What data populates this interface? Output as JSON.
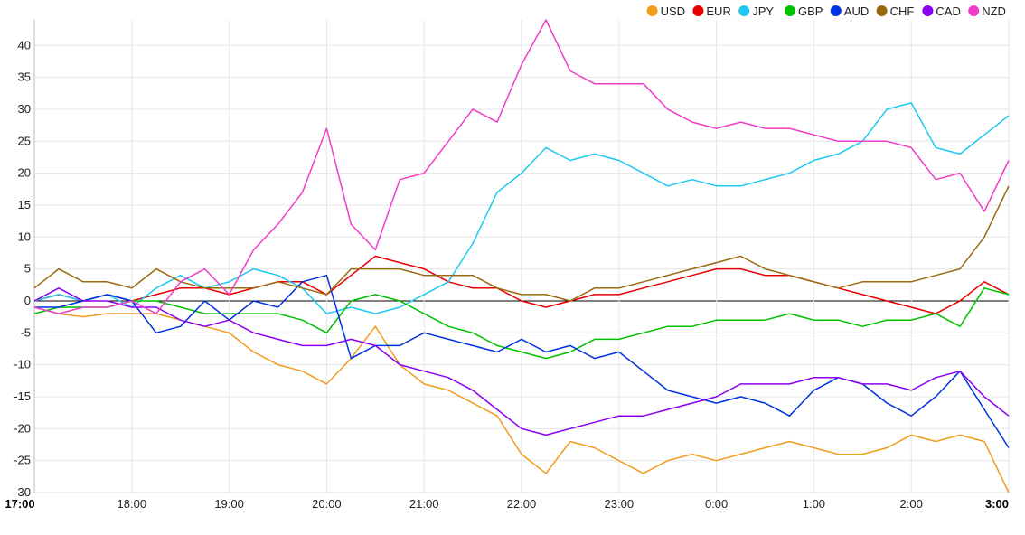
{
  "chart_data": {
    "type": "line",
    "ylim": [
      -30,
      44
    ],
    "yticks": [
      -30,
      -25,
      -20,
      -15,
      -10,
      -5,
      0,
      5,
      10,
      15,
      20,
      25,
      30,
      35,
      40
    ],
    "x_range": [
      17,
      27
    ],
    "x_ticks": [
      {
        "x": 17,
        "label": "17:00",
        "bold": true
      },
      {
        "x": 18,
        "label": "18:00",
        "bold": false
      },
      {
        "x": 19,
        "label": "19:00",
        "bold": false
      },
      {
        "x": 20,
        "label": "20:00",
        "bold": false
      },
      {
        "x": 21,
        "label": "21:00",
        "bold": false
      },
      {
        "x": 22,
        "label": "22:00",
        "bold": false
      },
      {
        "x": 23,
        "label": "23:00",
        "bold": false
      },
      {
        "x": 24,
        "label": "0:00",
        "bold": false
      },
      {
        "x": 25,
        "label": "1:00",
        "bold": false
      },
      {
        "x": 26,
        "label": "2:00",
        "bold": false
      },
      {
        "x": 27,
        "label": "3:00",
        "bold": true
      }
    ],
    "grid": true,
    "legend_position": "top-right",
    "series": [
      {
        "name": "USD",
        "color": "#f29c1f",
        "x": [
          17.0,
          17.25,
          17.5,
          17.75,
          18.0,
          18.25,
          18.5,
          18.75,
          19.0,
          19.25,
          19.5,
          19.75,
          20.0,
          20.25,
          20.5,
          20.75,
          21.0,
          21.25,
          21.5,
          21.75,
          22.0,
          22.25,
          22.5,
          22.75,
          23.0,
          23.25,
          23.5,
          23.75,
          24.0,
          24.25,
          24.5,
          24.75,
          25.0,
          25.25,
          25.5,
          25.75,
          26.0,
          26.25,
          26.5,
          26.75,
          27.0
        ],
        "y": [
          -1,
          -2,
          -2.5,
          -2,
          -2,
          -2,
          -3,
          -4,
          -5,
          -8,
          -10,
          -11,
          -13,
          -9,
          -4,
          -10,
          -13,
          -14,
          -16,
          -18,
          -24,
          -27,
          -22,
          -23,
          -25,
          -27,
          -25,
          -24,
          -25,
          -24,
          -23,
          -22,
          -23,
          -24,
          -24,
          -23,
          -21,
          -22,
          -21,
          -22,
          -30
        ]
      },
      {
        "name": "EUR",
        "color": "#e80000",
        "x": [
          17.0,
          17.25,
          17.5,
          17.75,
          18.0,
          18.25,
          18.5,
          18.75,
          19.0,
          19.25,
          19.5,
          19.75,
          20.0,
          20.25,
          20.5,
          20.75,
          21.0,
          21.25,
          21.5,
          21.75,
          22.0,
          22.25,
          22.5,
          22.75,
          23.0,
          23.25,
          23.5,
          23.75,
          24.0,
          24.25,
          24.5,
          24.75,
          25.0,
          25.25,
          25.5,
          25.75,
          26.0,
          26.25,
          26.5,
          26.75,
          27.0
        ],
        "y": [
          0,
          1,
          0,
          1,
          0,
          1,
          2,
          2,
          1,
          2,
          3,
          3,
          1,
          4,
          7,
          6,
          5,
          3,
          2,
          2,
          0,
          -1,
          0,
          1,
          1,
          2,
          3,
          4,
          5,
          5,
          4,
          4,
          3,
          2,
          1,
          0,
          -1,
          -2,
          0,
          3,
          1
        ]
      },
      {
        "name": "JPY",
        "color": "#1ec8f0",
        "x": [
          17.0,
          17.25,
          17.5,
          17.75,
          18.0,
          18.25,
          18.5,
          18.75,
          19.0,
          19.25,
          19.5,
          19.75,
          20.0,
          20.25,
          20.5,
          20.75,
          21.0,
          21.25,
          21.5,
          21.75,
          22.0,
          22.25,
          22.5,
          22.75,
          23.0,
          23.25,
          23.5,
          23.75,
          24.0,
          24.25,
          24.5,
          24.75,
          25.0,
          25.25,
          25.5,
          25.75,
          26.0,
          26.25,
          26.5,
          26.75,
          27.0
        ],
        "y": [
          0,
          1,
          0,
          1,
          -1,
          2,
          4,
          2,
          3,
          5,
          4,
          2,
          -2,
          -1,
          -2,
          -1,
          1,
          3,
          9,
          17,
          20,
          24,
          22,
          23,
          22,
          20,
          18,
          19,
          18,
          18,
          19,
          20,
          22,
          23,
          25,
          30,
          31,
          24,
          23,
          26,
          29
        ]
      },
      {
        "name": "GBP",
        "color": "#00c000",
        "x": [
          17.0,
          17.25,
          17.5,
          17.75,
          18.0,
          18.25,
          18.5,
          18.75,
          19.0,
          19.25,
          19.5,
          19.75,
          20.0,
          20.25,
          20.5,
          20.75,
          21.0,
          21.25,
          21.5,
          21.75,
          22.0,
          22.25,
          22.5,
          22.75,
          23.0,
          23.25,
          23.5,
          23.75,
          24.0,
          24.25,
          24.5,
          24.75,
          25.0,
          25.25,
          25.5,
          25.75,
          26.0,
          26.25,
          26.5,
          26.75,
          27.0
        ],
        "y": [
          -2,
          -1,
          -1,
          -1,
          0,
          0,
          -1,
          -2,
          -2,
          -2,
          -2,
          -3,
          -5,
          0,
          1,
          0,
          -2,
          -4,
          -5,
          -7,
          -8,
          -9,
          -8,
          -6,
          -6,
          -5,
          -4,
          -4,
          -3,
          -3,
          -3,
          -2,
          -3,
          -3,
          -4,
          -3,
          -3,
          -2,
          -4,
          2,
          1
        ]
      },
      {
        "name": "AUD",
        "color": "#0033e0",
        "x": [
          17.0,
          17.25,
          17.5,
          17.75,
          18.0,
          18.25,
          18.5,
          18.75,
          19.0,
          19.25,
          19.5,
          19.75,
          20.0,
          20.25,
          20.5,
          20.75,
          21.0,
          21.25,
          21.5,
          21.75,
          22.0,
          22.25,
          22.5,
          22.75,
          23.0,
          23.25,
          23.5,
          23.75,
          24.0,
          24.25,
          24.5,
          24.75,
          25.0,
          25.25,
          25.5,
          25.75,
          26.0,
          26.25,
          26.5,
          26.75,
          27.0
        ],
        "y": [
          -1,
          -1,
          0,
          1,
          0,
          -5,
          -4,
          0,
          -3,
          0,
          -1,
          3,
          4,
          -9,
          -7,
          -7,
          -5,
          -6,
          -7,
          -8,
          -6,
          -8,
          -7,
          -9,
          -8,
          -11,
          -14,
          -15,
          -16,
          -15,
          -16,
          -18,
          -14,
          -12,
          -13,
          -16,
          -18,
          -15,
          -11,
          -17,
          -23
        ]
      },
      {
        "name": "CHF",
        "color": "#9a6a10",
        "x": [
          17.0,
          17.25,
          17.5,
          17.75,
          18.0,
          18.25,
          18.5,
          18.75,
          19.0,
          19.25,
          19.5,
          19.75,
          20.0,
          20.25,
          20.5,
          20.75,
          21.0,
          21.25,
          21.5,
          21.75,
          22.0,
          22.25,
          22.5,
          22.75,
          23.0,
          23.25,
          23.5,
          23.75,
          24.0,
          24.25,
          24.5,
          24.75,
          25.0,
          25.25,
          25.5,
          25.75,
          26.0,
          26.25,
          26.5,
          26.75,
          27.0
        ],
        "y": [
          2,
          5,
          3,
          3,
          2,
          5,
          3,
          2,
          2,
          2,
          3,
          2,
          1,
          5,
          5,
          5,
          4,
          4,
          4,
          2,
          1,
          1,
          0,
          2,
          2,
          3,
          4,
          5,
          6,
          7,
          5,
          4,
          3,
          2,
          3,
          3,
          3,
          4,
          5,
          10,
          18
        ]
      },
      {
        "name": "CAD",
        "color": "#8a00f0",
        "x": [
          17.0,
          17.25,
          17.5,
          17.75,
          18.0,
          18.25,
          18.5,
          18.75,
          19.0,
          19.25,
          19.5,
          19.75,
          20.0,
          20.25,
          20.5,
          20.75,
          21.0,
          21.25,
          21.5,
          21.75,
          22.0,
          22.25,
          22.5,
          22.75,
          23.0,
          23.25,
          23.5,
          23.75,
          24.0,
          24.25,
          24.5,
          24.75,
          25.0,
          25.25,
          25.5,
          25.75,
          26.0,
          26.25,
          26.5,
          26.75,
          27.0
        ],
        "y": [
          0,
          2,
          0,
          0,
          -1,
          -1,
          -3,
          -4,
          -3,
          -5,
          -6,
          -7,
          -7,
          -6,
          -7,
          -10,
          -11,
          -12,
          -14,
          -17,
          -20,
          -21,
          -20,
          -19,
          -18,
          -18,
          -17,
          -16,
          -15,
          -13,
          -13,
          -13,
          -12,
          -12,
          -13,
          -13,
          -14,
          -12,
          -11,
          -15,
          -18
        ]
      },
      {
        "name": "NZD",
        "color": "#f03cc8",
        "x": [
          17.0,
          17.25,
          17.5,
          17.75,
          18.0,
          18.25,
          18.5,
          18.75,
          19.0,
          19.25,
          19.5,
          19.75,
          20.0,
          20.25,
          20.5,
          20.75,
          21.0,
          21.25,
          21.5,
          21.75,
          22.0,
          22.25,
          22.5,
          22.75,
          23.0,
          23.25,
          23.5,
          23.75,
          24.0,
          24.25,
          24.5,
          24.75,
          25.0,
          25.25,
          25.5,
          25.75,
          26.0,
          26.25,
          26.5,
          26.75,
          27.0
        ],
        "y": [
          -1,
          -2,
          -1,
          -1,
          0,
          -2,
          3,
          5,
          1,
          8,
          12,
          17,
          27,
          12,
          8,
          19,
          20,
          25,
          30,
          28,
          37,
          44,
          36,
          34,
          34,
          34,
          30,
          28,
          27,
          28,
          27,
          27,
          26,
          25,
          25,
          25,
          24,
          19,
          20,
          14,
          22
        ]
      }
    ]
  }
}
